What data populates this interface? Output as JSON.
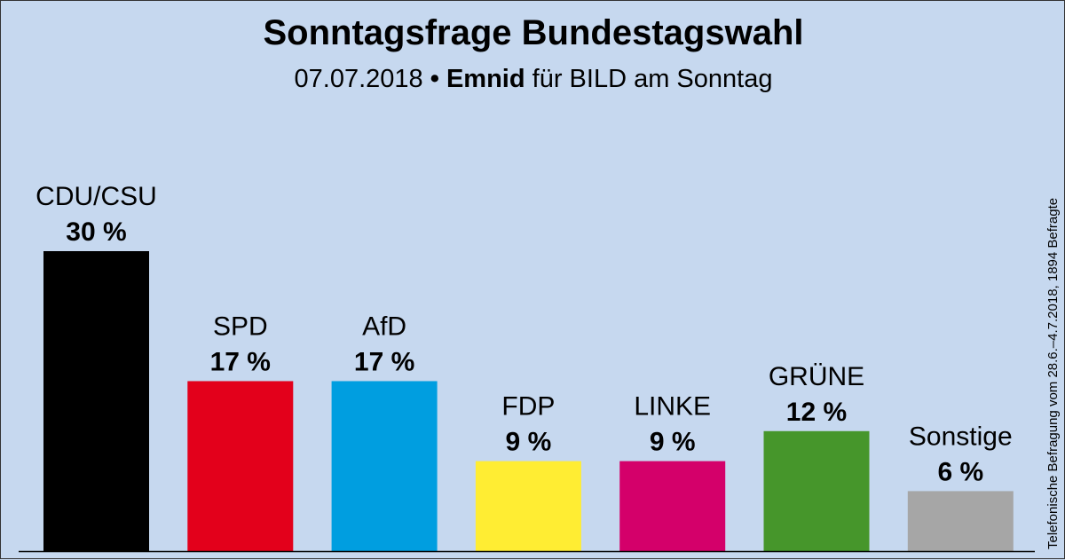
{
  "header": {
    "title": "Sonntagsfrage Bundestagswahl",
    "subtitle_date": "07.07.2018",
    "subtitle_bullet": "•",
    "subtitle_institute": "Emnid",
    "subtitle_client": "für BILD am Sonntag"
  },
  "side_note": "Telefonische Befragung vom 28.6.–4.7.2018, 1894 Befragte",
  "chart_data": {
    "type": "bar",
    "title": "Sonntagsfrage Bundestagswahl",
    "subtitle": "07.07.2018 • Emnid für BILD am Sonntag",
    "xlabel": "",
    "ylabel": "",
    "ylim": [
      0,
      30
    ],
    "unit": "%",
    "categories": [
      "CDU/CSU",
      "SPD",
      "AfD",
      "FDP",
      "LINKE",
      "GRÜNE",
      "Sonstige"
    ],
    "values": [
      30,
      17,
      17,
      9,
      9,
      12,
      6
    ],
    "value_labels": [
      "30 %",
      "17 %",
      "17 %",
      "9 %",
      "9 %",
      "12 %",
      "6 %"
    ],
    "colors": [
      "#000000",
      "#e3001b",
      "#009ee0",
      "#ffed33",
      "#d4006a",
      "#46962b",
      "#a6a6a6"
    ]
  }
}
